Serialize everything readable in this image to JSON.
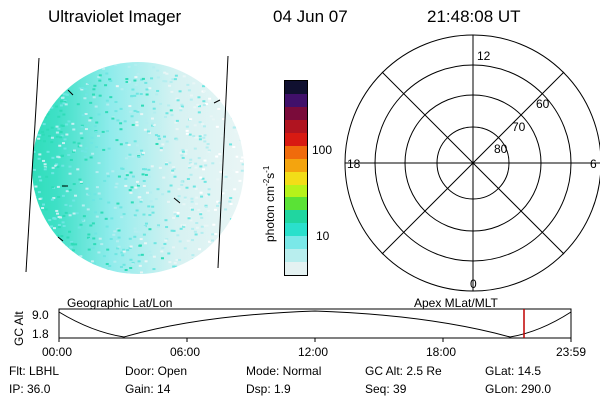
{
  "header": {
    "title": "Ultraviolet Imager",
    "date": "04 Jun 07",
    "time": "21:48:08 UT"
  },
  "colorbar": {
    "label": "photon cm",
    "exp1": "-2",
    "mid": "s",
    "exp2": "-1",
    "ticks": [
      "100",
      "10"
    ],
    "colors": [
      "#101030",
      "#40106a",
      "#7a0b3a",
      "#b01420",
      "#d81a12",
      "#f06b0c",
      "#f4a40e",
      "#f2dd18",
      "#b6f21a",
      "#5ae236",
      "#20d6a0",
      "#2ae0cc",
      "#7ae8e8",
      "#b8eeee",
      "#e4f2f2"
    ]
  },
  "polar": {
    "labels": {
      "top": "12",
      "bottom": "0",
      "left": "18",
      "right": "6"
    },
    "rings": [
      "60",
      "70",
      "80"
    ]
  },
  "timeline": {
    "left_label": "Geographic Lat/Lon",
    "right_label": "Apex MLat/MLT",
    "y_title": "GC Alt",
    "y_ticks": [
      "9.0",
      "1.8"
    ],
    "x_ticks": [
      "00:00",
      "06:00",
      "12:00",
      "18:00",
      "23:59"
    ],
    "marker_color": "#c00000"
  },
  "status": {
    "flt": "Flt: LBHL",
    "ip": "IP: 36.0",
    "door": "Door: Open",
    "gain": "Gain: 14",
    "mode": "Mode: Normal",
    "dsp": "Dsp:     1.9",
    "gcalt": "GC Alt: 2.5 Re",
    "seq": "Seq: 39",
    "glat": "GLat:  14.5",
    "glon": "GLon: 290.0"
  }
}
